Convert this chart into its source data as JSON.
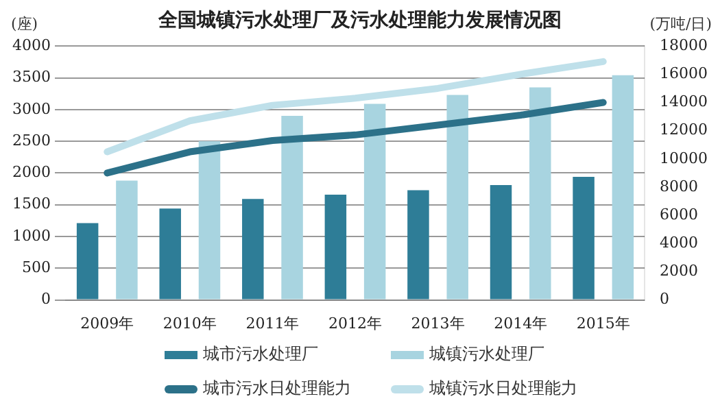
{
  "chart_data": {
    "type": "bar",
    "title": "全国城镇污水处理厂及污水处理能力发展情况图",
    "ylabel": "(座)",
    "y2label": "(万吨/日)",
    "categories": [
      "2009年",
      "2010年",
      "2011年",
      "2012年",
      "2013年",
      "2014年",
      "2015年"
    ],
    "series": [
      {
        "name": "城市污水处理厂",
        "color": "#2e7d97",
        "values": [
          1210,
          1440,
          1590,
          1660,
          1730,
          1810,
          1940
        ]
      },
      {
        "name": "城镇污水处理厂",
        "color": "#a8d4e0",
        "values": [
          1880,
          2500,
          2900,
          3090,
          3230,
          3350,
          3540
        ]
      },
      {
        "name": "城市污水日处理能力",
        "type": "line",
        "axis": "y2",
        "color": "#2c7189",
        "values": [
          9000,
          10500,
          11300,
          11700,
          12400,
          13100,
          14000
        ]
      },
      {
        "name": "城镇污水日处理能力",
        "type": "line",
        "axis": "y2",
        "color": "#bfe0ea",
        "values": [
          10500,
          12700,
          13800,
          14300,
          15000,
          16000,
          16900
        ]
      }
    ],
    "ylim": [
      0,
      4000
    ],
    "yticks": [
      0,
      500,
      1000,
      1500,
      2000,
      2500,
      3000,
      3500,
      4000
    ],
    "y2lim": [
      0,
      18000
    ],
    "y2ticks": [
      0,
      2000,
      4000,
      6000,
      8000,
      10000,
      12000,
      14000,
      16000,
      18000
    ],
    "grid": "y",
    "legend": "bottom",
    "marker": "none"
  }
}
